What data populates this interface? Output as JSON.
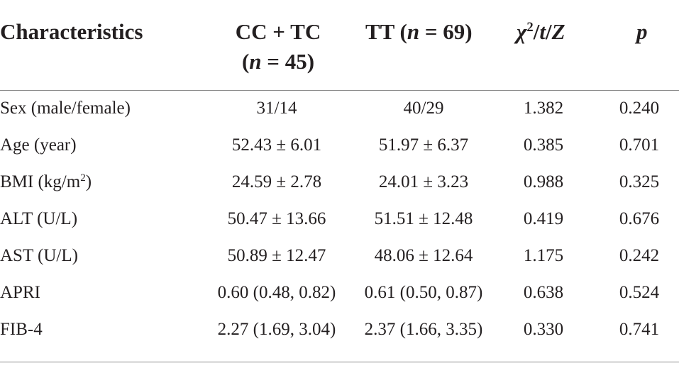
{
  "header": {
    "characteristics": "Characteristics",
    "cc_tc": [
      "CC + TC",
      "(",
      "n",
      " = 45)"
    ],
    "tt": [
      "TT (",
      "n",
      " = 69)"
    ],
    "stat": [
      "χ",
      "2",
      "/",
      "t",
      "/",
      "Z"
    ],
    "p": "p"
  },
  "table": {
    "rows": [
      [
        [
          "Sex (male/female)"
        ],
        "31/14",
        "40/29",
        "1.382",
        "0.240"
      ],
      [
        [
          "Age (year)"
        ],
        "52.43 ± 6.01",
        "51.97 ± 6.37",
        "0.385",
        "0.701"
      ],
      [
        [
          "BMI (kg/m",
          "2",
          ")"
        ],
        "24.59 ± 2.78",
        "24.01 ± 3.23",
        "0.988",
        "0.325"
      ],
      [
        [
          "ALT (U/L)"
        ],
        "50.47 ± 13.66",
        "51.51 ± 12.48",
        "0.419",
        "0.676"
      ],
      [
        [
          "AST (U/L)"
        ],
        "50.89 ± 12.47",
        "48.06 ± 12.64",
        "1.175",
        "0.242"
      ],
      [
        [
          "APRI"
        ],
        "0.60 (0.48, 0.82)",
        "0.61 (0.50, 0.87)",
        "0.638",
        "0.524"
      ],
      [
        [
          "FIB-4"
        ],
        "2.27 (1.69, 3.04)",
        "2.37 (1.66, 3.35)",
        "0.330",
        "0.741"
      ]
    ]
  }
}
